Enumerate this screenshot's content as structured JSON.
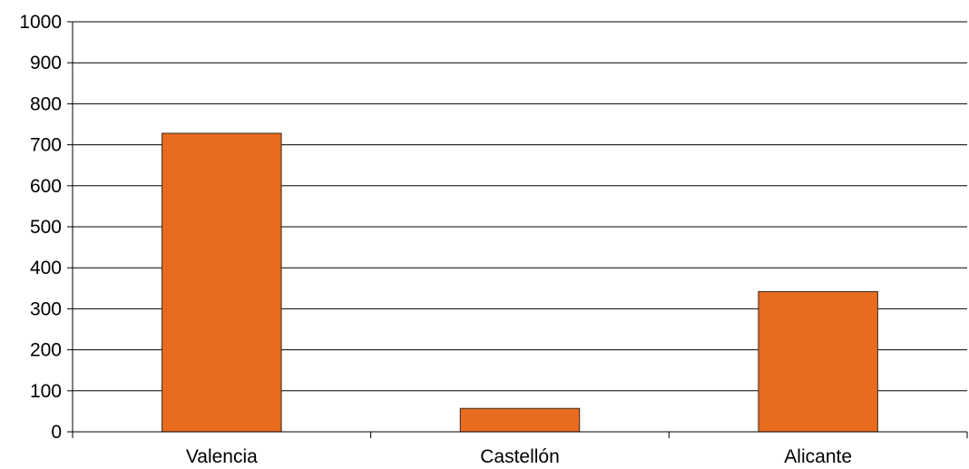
{
  "chart_data": {
    "type": "bar",
    "title": "",
    "xlabel": "",
    "ylabel": "",
    "categories": [
      "Valencia",
      "Castellón",
      "Alicante"
    ],
    "values": [
      728,
      57,
      342
    ],
    "ylim": [
      0,
      1000
    ],
    "yticks": [
      0,
      100,
      200,
      300,
      400,
      500,
      600,
      700,
      800,
      900,
      1000
    ],
    "grid": true,
    "legend": "none",
    "colors": {
      "bar_fill": "#E86C1F",
      "bar_stroke": "#3A2A1A",
      "grid": "#000000",
      "axis": "#000000"
    }
  }
}
